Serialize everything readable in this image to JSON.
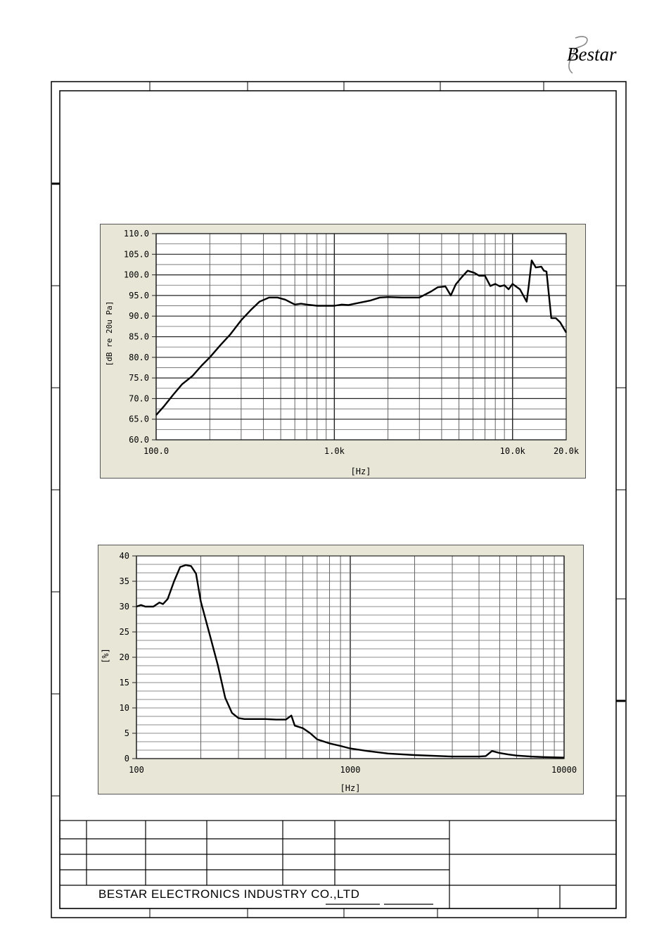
{
  "company_name": "BESTAR ELECTRONICS INDUSTRY CO.,LTD",
  "logo_text": "Bestar",
  "chart_data": [
    {
      "type": "line",
      "xscale": "log",
      "xlim": [
        100,
        20000
      ],
      "ylim": [
        60,
        110
      ],
      "xlabel": "[Hz]",
      "ylabel": "[dB re 20u Pa]",
      "xtick_labels": [
        {
          "value": 100,
          "label": "100.0"
        },
        {
          "value": 1000,
          "label": "1.0k"
        },
        {
          "value": 10000,
          "label": "10.0k"
        },
        {
          "value": 20000,
          "label": "20.0k"
        }
      ],
      "ytick_labels": [
        {
          "value": 60,
          "label": "60.0"
        },
        {
          "value": 65,
          "label": "65.0"
        },
        {
          "value": 70,
          "label": "70.0"
        },
        {
          "value": 75,
          "label": "75.0"
        },
        {
          "value": 80,
          "label": "80.0"
        },
        {
          "value": 85,
          "label": "85.0"
        },
        {
          "value": 90,
          "label": "90.0"
        },
        {
          "value": 95,
          "label": "95.0"
        },
        {
          "value": 100,
          "label": "100.0"
        },
        {
          "value": 105,
          "label": "105.0"
        },
        {
          "value": 110,
          "label": "110.0"
        }
      ],
      "grid": true,
      "series": [
        {
          "x": [
            100,
            110,
            125,
            140,
            160,
            180,
            200,
            230,
            260,
            300,
            340,
            380,
            430,
            480,
            530,
            600,
            650,
            700,
            800,
            1000,
            1100,
            1200,
            1400,
            1600,
            1800,
            2000,
            2400,
            3000,
            3500,
            3800,
            4200,
            4500,
            4800,
            5200,
            5600,
            6100,
            6500,
            7000,
            7500,
            8000,
            8500,
            9000,
            9500,
            10000,
            11000,
            12000,
            12300,
            12800,
            13500,
            14500,
            15000,
            15500,
            16500,
            17500,
            18500,
            20000
          ],
          "y": [
            66,
            68,
            71,
            73.5,
            75.5,
            78,
            80,
            83,
            85.5,
            89,
            91.5,
            93.5,
            94.5,
            94.5,
            94,
            92.8,
            93,
            92.8,
            92.5,
            92.5,
            92.8,
            92.7,
            93.3,
            93.8,
            94.5,
            94.6,
            94.5,
            94.5,
            96,
            97,
            97.2,
            95,
            97.7,
            99.5,
            101,
            100.5,
            99.8,
            99.8,
            97.3,
            97.8,
            97.2,
            97.5,
            96.5,
            97.8,
            96.5,
            93.5,
            97,
            103.5,
            101.8,
            102,
            101,
            100.8,
            89.5,
            89.5,
            88.5,
            86
          ]
        }
      ]
    },
    {
      "type": "line",
      "xscale": "log",
      "xlim": [
        100,
        10000
      ],
      "ylim": [
        0,
        40
      ],
      "xlabel": "[Hz]",
      "ylabel": "[%]",
      "xtick_labels": [
        {
          "value": 100,
          "label": "100"
        },
        {
          "value": 1000,
          "label": "1000"
        },
        {
          "value": 10000,
          "label": "10000"
        }
      ],
      "ytick_labels": [
        {
          "value": 0,
          "label": "0"
        },
        {
          "value": 5,
          "label": "5"
        },
        {
          "value": 10,
          "label": "10"
        },
        {
          "value": 15,
          "label": "15"
        },
        {
          "value": 20,
          "label": "20"
        },
        {
          "value": 25,
          "label": "25"
        },
        {
          "value": 30,
          "label": "30"
        },
        {
          "value": 35,
          "label": "35"
        },
        {
          "value": 40,
          "label": "40"
        }
      ],
      "grid": true,
      "series": [
        {
          "x": [
            100,
            105,
            110,
            120,
            128,
            133,
            140,
            150,
            160,
            170,
            180,
            190,
            200,
            220,
            240,
            260,
            280,
            300,
            320,
            350,
            400,
            450,
            500,
            530,
            550,
            580,
            600,
            650,
            700,
            800,
            900,
            1000,
            1200,
            1500,
            2000,
            3000,
            4000,
            4300,
            4600,
            5000,
            5500,
            6000,
            7000,
            8000,
            10000
          ],
          "y": [
            30,
            30.3,
            30,
            30,
            30.8,
            30.5,
            31.5,
            35,
            37.8,
            38.2,
            38,
            36.5,
            31,
            24.5,
            18.5,
            12,
            9,
            8,
            7.8,
            7.8,
            7.8,
            7.7,
            7.7,
            8.5,
            6.5,
            6.2,
            6,
            5,
            3.8,
            3,
            2.5,
            2,
            1.5,
            1,
            0.7,
            0.4,
            0.4,
            0.5,
            1.5,
            1.1,
            0.8,
            0.6,
            0.4,
            0.3,
            0.2
          ]
        }
      ]
    }
  ]
}
